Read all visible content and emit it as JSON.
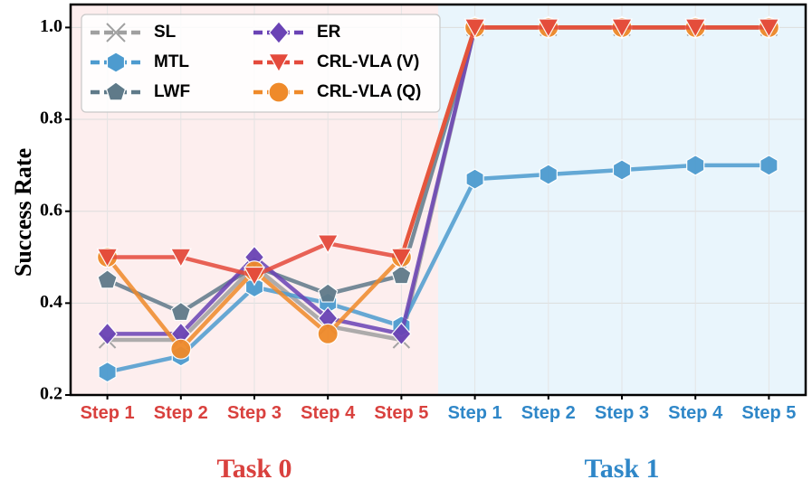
{
  "chart_data": {
    "type": "line",
    "ylabel": "Success Rate",
    "xlabel": "",
    "ylim": [
      0.2,
      1.05
    ],
    "yticks": [
      0.2,
      0.4,
      0.6,
      0.8,
      1.0
    ],
    "ytick_labels": [
      "0.2",
      "0.4",
      "0.6",
      "0.8",
      "1.0"
    ],
    "grid": true,
    "legend_position": "top-left",
    "categories": [
      "Step 1",
      "Step 2",
      "Step 3",
      "Step 4",
      "Step 5",
      "Step 1",
      "Step 2",
      "Step 3",
      "Step 4",
      "Step 5"
    ],
    "groups": [
      {
        "label": "Task 0",
        "color": "#d9413e",
        "background": "#fdeeee",
        "range": [
          0,
          4
        ]
      },
      {
        "label": "Task 1",
        "color": "#2f87c8",
        "background": "#e9f5fc",
        "range": [
          5,
          9
        ]
      }
    ],
    "series": [
      {
        "name": "SL",
        "color": "#a0a0a0",
        "marker": "x",
        "dash": false,
        "values": [
          0.32,
          0.32,
          0.48,
          0.35,
          0.32,
          1.0,
          1.0,
          1.0,
          1.0,
          1.0
        ]
      },
      {
        "name": "MTL",
        "color": "#4d9bcf",
        "marker": "hexagon",
        "dash": false,
        "values": [
          0.25,
          0.285,
          0.435,
          0.4,
          0.35,
          0.67,
          0.68,
          0.69,
          0.7,
          0.7
        ]
      },
      {
        "name": "LWF",
        "color": "#5f7a89",
        "marker": "pentagon",
        "dash": false,
        "values": [
          0.45,
          0.38,
          0.48,
          0.42,
          0.46,
          1.0,
          1.0,
          1.0,
          1.0,
          1.0
        ]
      },
      {
        "name": "ER",
        "color": "#6a43b5",
        "marker": "diamond",
        "dash": false,
        "values": [
          0.333,
          0.333,
          0.5,
          0.367,
          0.333,
          1.0,
          1.0,
          1.0,
          1.0,
          1.0
        ]
      },
      {
        "name": "CRL-VLA (V)",
        "color": "#e44a3c",
        "marker": "triangle-down",
        "dash": false,
        "values": [
          0.5,
          0.5,
          0.46,
          0.53,
          0.5,
          1.0,
          1.0,
          1.0,
          1.0,
          1.0
        ]
      },
      {
        "name": "CRL-VLA (Q)",
        "color": "#ef8a2a",
        "marker": "circle",
        "dash": false,
        "values": [
          0.5,
          0.3,
          0.47,
          0.333,
          0.5,
          1.0,
          1.0,
          1.0,
          1.0,
          1.0
        ]
      }
    ],
    "legend": {
      "columns": [
        [
          "SL",
          "MTL",
          "LWF"
        ],
        [
          "ER",
          "CRL-VLA (V)",
          "CRL-VLA (Q)"
        ]
      ],
      "line_style": "dashed"
    }
  }
}
